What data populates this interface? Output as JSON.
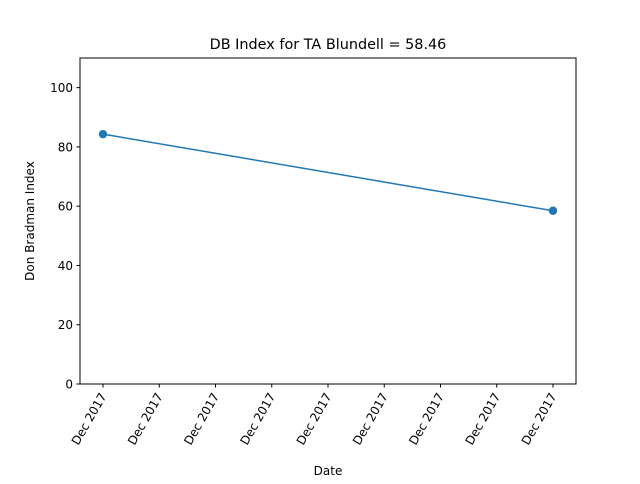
{
  "chart_data": {
    "type": "line",
    "title": "DB Index for TA Blundell = 58.46",
    "xlabel": "Date",
    "ylabel": "Don Bradman Index",
    "x_tick_labels": [
      "Dec 2017",
      "Dec 2017",
      "Dec 2017",
      "Dec 2017",
      "Dec 2017",
      "Dec 2017",
      "Dec 2017",
      "Dec 2017",
      "Dec 2017"
    ],
    "y_ticks": [
      0,
      20,
      40,
      60,
      80,
      100
    ],
    "ylim": [
      0,
      110
    ],
    "grid": false,
    "series": [
      {
        "color": "#1f77b4",
        "points": [
          {
            "x": "first match, Dec 2017",
            "y": 84.3
          },
          {
            "x": "last match, Dec 2017",
            "y": 58.46
          }
        ]
      }
    ]
  }
}
